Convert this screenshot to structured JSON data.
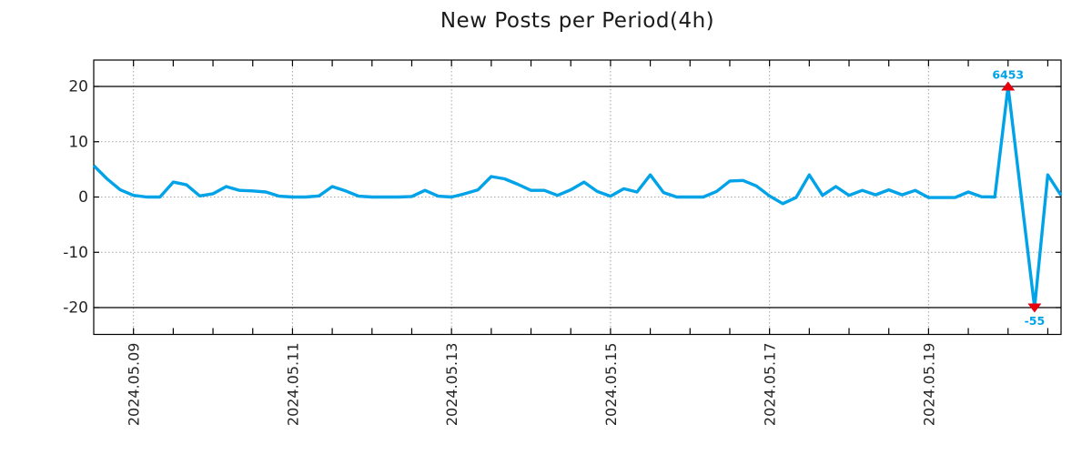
{
  "page": {
    "background": "#FFFFFF"
  },
  "chart_data": {
    "type": "line",
    "title": "New Posts per Period(4h)",
    "period_hours": 4,
    "x_axis": {
      "tick_labels": [
        "2024.05.09",
        "2024.05.11",
        "2024.05.13",
        "2024.05.15",
        "2024.05.17",
        "2024.05.19"
      ],
      "tick_indices": [
        3,
        15,
        27,
        39,
        51,
        63
      ],
      "minor_tick_every_points": 3,
      "label_rotation_deg": -90
    },
    "y_axis": {
      "ticks": [
        20,
        10,
        0,
        -10,
        -20
      ],
      "dotted_gridlines": [
        10,
        0,
        -10
      ],
      "solid_lines": [
        20,
        -20
      ],
      "ylim": [
        -24.8,
        24.8
      ]
    },
    "clip": [
      -20,
      20
    ],
    "series": [
      {
        "name": "new-posts-per-period",
        "values": [
          5.7,
          3.3,
          1.3,
          0.3,
          0,
          0,
          2.7,
          2.2,
          0.2,
          0.6,
          1.9,
          1.2,
          1.1,
          0.9,
          0.15,
          0,
          0,
          0.2,
          1.9,
          1.1,
          0.15,
          0,
          0,
          0,
          0.1,
          1.2,
          0.15,
          0,
          0.6,
          1.3,
          3.7,
          3.3,
          2.3,
          1.2,
          1.2,
          0.3,
          1.3,
          2.7,
          1.0,
          0.15,
          1.5,
          0.9,
          4.0,
          0.8,
          0,
          0,
          0,
          1.0,
          2.9,
          3.0,
          2.0,
          0.2,
          -1.2,
          -0.1,
          4.0,
          0.3,
          1.9,
          0.3,
          1.2,
          0.4,
          1.3,
          0.4,
          1.2,
          -0.1,
          -0.1,
          -0.1,
          0.9,
          0.05,
          0,
          6453,
          0,
          -55,
          4.0,
          0.3
        ]
      }
    ],
    "annotations": [
      {
        "index": 69,
        "value": 6453,
        "label": "6453",
        "marker": "triangle"
      },
      {
        "index": 71,
        "value": -55,
        "label": "-55",
        "marker": "triangle"
      }
    ],
    "colors": {
      "line": "#00A2E8",
      "marker": "#E8000B",
      "grid": "#A6A6A6",
      "axis": "#000000",
      "tick_text": "#262626",
      "title_text": "#1A1A1A",
      "annotation_text": "#00A2E8",
      "background": "#FFFFFF"
    }
  }
}
